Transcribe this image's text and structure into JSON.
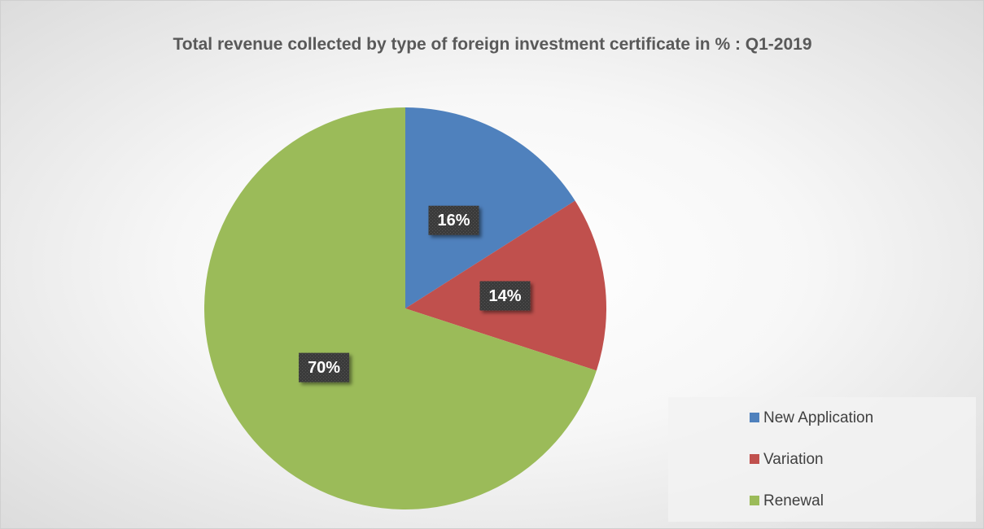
{
  "chart_data": {
    "type": "pie",
    "title": "Total revenue collected by type of foreign investment certificate in % : Q1-2019",
    "categories": [
      "New Application",
      "Variation",
      "Renewal"
    ],
    "values": [
      16,
      14,
      70
    ],
    "value_labels": [
      "16%",
      "14%",
      "70%"
    ],
    "colors": [
      "#4f81bd",
      "#c0504d",
      "#9bbb59"
    ],
    "legend": "lower right"
  }
}
